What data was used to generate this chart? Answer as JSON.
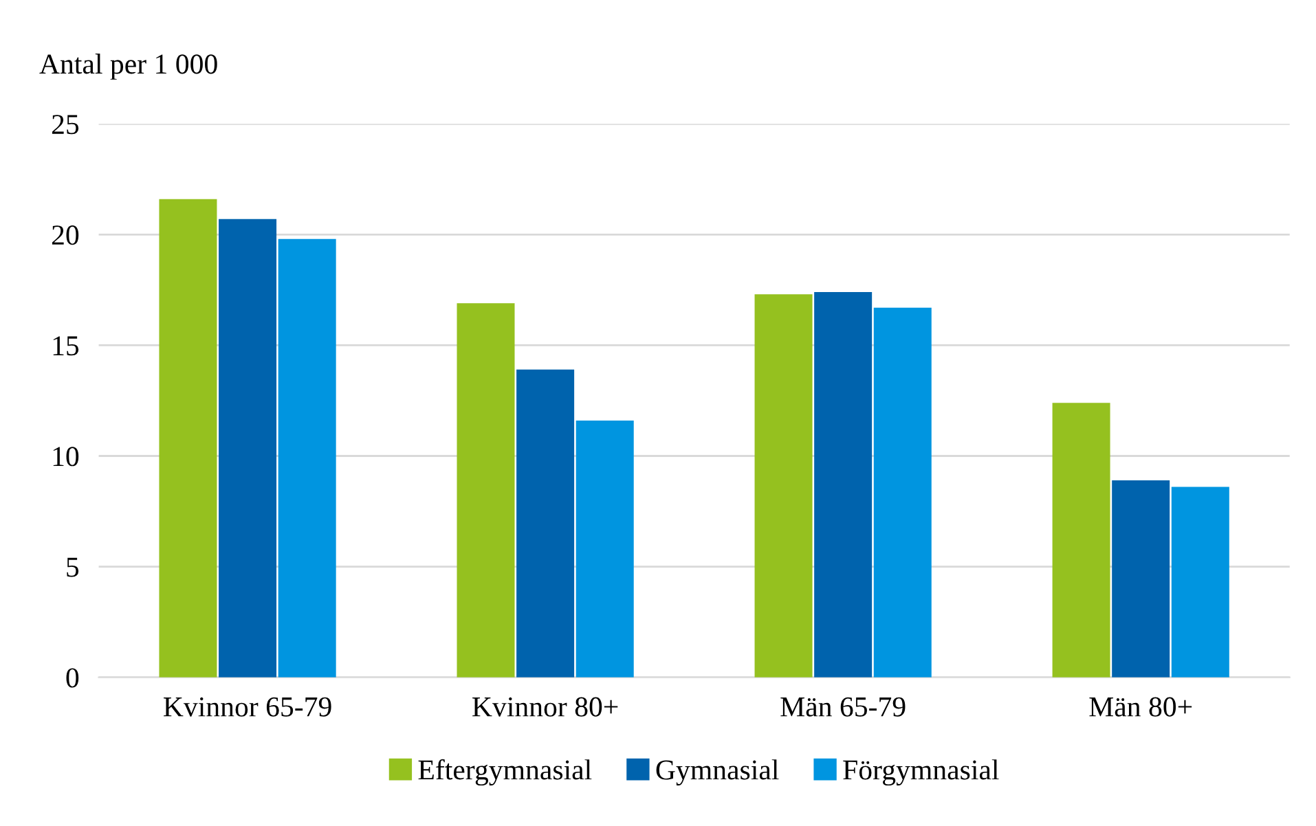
{
  "chart_data": {
    "type": "bar",
    "ylabel": "Antal per 1 000",
    "categories": [
      "Kvinnor 65-79",
      "Kvinnor 80+",
      "Män 65-79",
      "Män 80+"
    ],
    "series": [
      {
        "name": "Eftergymnasial",
        "color": "#95c11f",
        "values": [
          21.6,
          16.9,
          17.3,
          12.4
        ]
      },
      {
        "name": "Gymnasial",
        "color": "#0063ad",
        "values": [
          20.7,
          13.9,
          17.4,
          8.9
        ]
      },
      {
        "name": "Förgymnasial",
        "color": "#0095e0",
        "values": [
          19.8,
          11.6,
          16.7,
          8.6
        ]
      }
    ],
    "ylim": [
      0,
      25
    ],
    "yticks": [
      0,
      5,
      10,
      15,
      20,
      25
    ],
    "grid": "y",
    "legend": "bottom"
  }
}
